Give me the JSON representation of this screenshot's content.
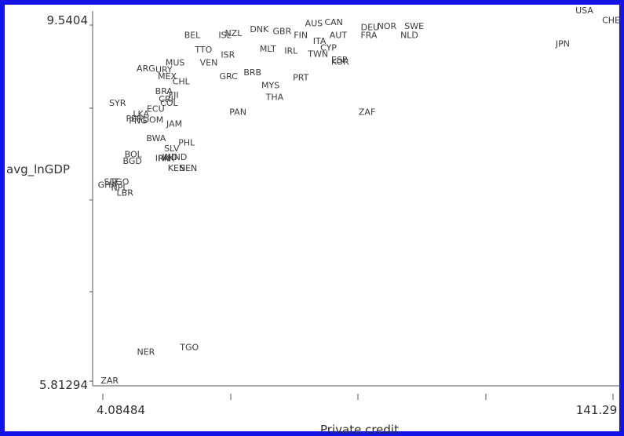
{
  "chart_data": {
    "type": "scatter",
    "xlabel": "Private credit",
    "ylabel": "avg_lnGDP",
    "xlim": [
      4.08484,
      141.29
    ],
    "ylim": [
      5.81294,
      9.5404
    ],
    "x_tick_labels": [
      "4.08484",
      "141.29"
    ],
    "y_tick_labels": [
      "9.5404",
      "5.81294"
    ],
    "grid": false,
    "marker": "text-label",
    "points": [
      {
        "label": "USA",
        "x": 132.8,
        "y": 9.58
      },
      {
        "label": "CHE",
        "x": 146.5,
        "y": 9.48
      },
      {
        "label": "AUS",
        "x": 60.5,
        "y": 9.45
      },
      {
        "label": "CAN",
        "x": 65.8,
        "y": 9.46
      },
      {
        "label": "DEU",
        "x": 75.5,
        "y": 9.41
      },
      {
        "label": "NOR",
        "x": 80.0,
        "y": 9.42
      },
      {
        "label": "SWE",
        "x": 87.3,
        "y": 9.42
      },
      {
        "label": "DNK",
        "x": 45.9,
        "y": 9.39
      },
      {
        "label": "GBR",
        "x": 52.0,
        "y": 9.37
      },
      {
        "label": "NZL",
        "x": 39.0,
        "y": 9.35
      },
      {
        "label": "FIN",
        "x": 57.0,
        "y": 9.33
      },
      {
        "label": "BEL",
        "x": 28.0,
        "y": 9.33
      },
      {
        "label": "ISL",
        "x": 36.7,
        "y": 9.33
      },
      {
        "label": "AUT",
        "x": 67.0,
        "y": 9.33
      },
      {
        "label": "FRA",
        "x": 75.2,
        "y": 9.33
      },
      {
        "label": "NLD",
        "x": 86.0,
        "y": 9.33
      },
      {
        "label": "ITA",
        "x": 62.0,
        "y": 9.27
      },
      {
        "label": "JPN",
        "x": 127.0,
        "y": 9.24
      },
      {
        "label": "CYP",
        "x": 64.4,
        "y": 9.2
      },
      {
        "label": "TTO",
        "x": 31.0,
        "y": 9.18
      },
      {
        "label": "MLT",
        "x": 48.2,
        "y": 9.19
      },
      {
        "label": "IRL",
        "x": 54.4,
        "y": 9.17
      },
      {
        "label": "ISR",
        "x": 37.5,
        "y": 9.13
      },
      {
        "label": "TWN",
        "x": 61.6,
        "y": 9.14
      },
      {
        "label": "ESP",
        "x": 67.3,
        "y": 9.08
      },
      {
        "label": "KOR",
        "x": 67.5,
        "y": 9.06
      },
      {
        "label": "MUS",
        "x": 23.4,
        "y": 9.05
      },
      {
        "label": "VEN",
        "x": 32.4,
        "y": 9.05
      },
      {
        "label": "ARG",
        "x": 15.6,
        "y": 8.99
      },
      {
        "label": "URY",
        "x": 20.4,
        "y": 8.98
      },
      {
        "label": "BRB",
        "x": 44.1,
        "y": 8.95
      },
      {
        "label": "MEX",
        "x": 21.3,
        "y": 8.91
      },
      {
        "label": "GRC",
        "x": 37.7,
        "y": 8.91
      },
      {
        "label": "PRT",
        "x": 57.0,
        "y": 8.9
      },
      {
        "label": "CHL",
        "x": 25.0,
        "y": 8.86
      },
      {
        "label": "MYS",
        "x": 48.9,
        "y": 8.82
      },
      {
        "label": "BRA",
        "x": 20.4,
        "y": 8.76
      },
      {
        "label": "FJI",
        "x": 23.0,
        "y": 8.72
      },
      {
        "label": "THA",
        "x": 50.0,
        "y": 8.7
      },
      {
        "label": "CRI",
        "x": 21.0,
        "y": 8.68
      },
      {
        "label": "SYR",
        "x": 8.0,
        "y": 8.64
      },
      {
        "label": "COL",
        "x": 21.8,
        "y": 8.64
      },
      {
        "label": "ECU",
        "x": 18.2,
        "y": 8.58
      },
      {
        "label": "PAN",
        "x": 40.2,
        "y": 8.55
      },
      {
        "label": "ZAF",
        "x": 74.7,
        "y": 8.55
      },
      {
        "label": "LKA",
        "x": 14.3,
        "y": 8.53
      },
      {
        "label": "PER",
        "x": 12.5,
        "y": 8.48
      },
      {
        "label": "DOM",
        "x": 17.5,
        "y": 8.47
      },
      {
        "label": "PNG",
        "x": 13.5,
        "y": 8.46
      },
      {
        "label": "JAM",
        "x": 23.2,
        "y": 8.43
      },
      {
        "label": "BWA",
        "x": 18.3,
        "y": 8.28
      },
      {
        "label": "PHL",
        "x": 26.5,
        "y": 8.24
      },
      {
        "label": "SLV",
        "x": 22.5,
        "y": 8.18
      },
      {
        "label": "BOL",
        "x": 12.2,
        "y": 8.12
      },
      {
        "label": "IND",
        "x": 22.0,
        "y": 8.09
      },
      {
        "label": "HND",
        "x": 24.0,
        "y": 8.09
      },
      {
        "label": "IRN",
        "x": 20.1,
        "y": 8.08
      },
      {
        "label": "PAK",
        "x": 21.0,
        "y": 8.08
      },
      {
        "label": "BGD",
        "x": 12.0,
        "y": 8.05
      },
      {
        "label": "KEN",
        "x": 23.8,
        "y": 7.98
      },
      {
        "label": "SEN",
        "x": 27.0,
        "y": 7.98
      },
      {
        "label": "SLE",
        "x": 6.5,
        "y": 7.84
      },
      {
        "label": "GHA",
        "x": 5.3,
        "y": 7.81
      },
      {
        "label": "TGO",
        "x": 8.6,
        "y": 7.84
      },
      {
        "label": "NPL",
        "x": 8.5,
        "y": 7.78
      },
      {
        "label": "LBR",
        "x": 10.0,
        "y": 7.73
      },
      {
        "label": "TGO",
        "x": 27.2,
        "y": 6.16
      },
      {
        "label": "NER",
        "x": 15.6,
        "y": 6.11
      },
      {
        "label": "ZAR",
        "x": 5.9,
        "y": 5.82
      }
    ]
  }
}
